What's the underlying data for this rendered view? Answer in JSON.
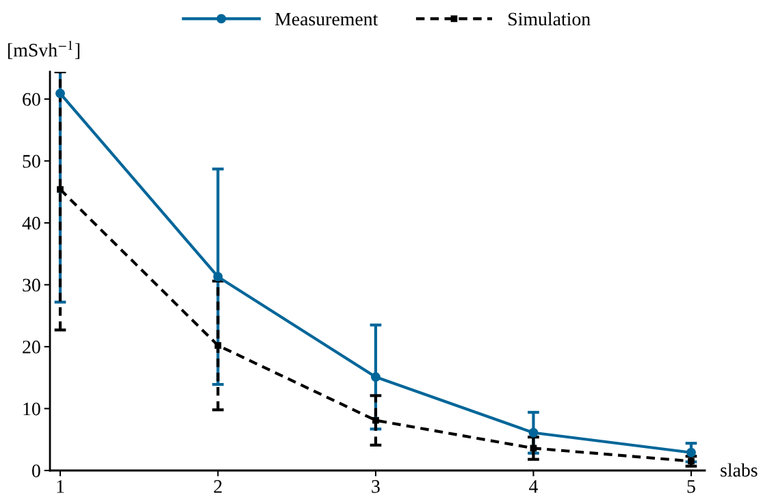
{
  "chart_data": {
    "type": "line",
    "xlabel": "slabs",
    "ylabel": "[mSvh$^{−1}$]",
    "x": [
      1,
      2,
      3,
      4,
      5
    ],
    "xlim": [
      0.935,
      5.087
    ],
    "xticks": [
      1,
      2,
      3,
      4,
      5
    ],
    "ylim": [
      0,
      64.4
    ],
    "yticks": [
      0,
      10,
      20,
      30,
      40,
      50,
      60
    ],
    "grid": false,
    "legend": "top",
    "series": [
      {
        "name": "Measurement",
        "color": "#006699",
        "marker": "circle",
        "line_style": "solid",
        "values": [
          60.9,
          31.3,
          15.1,
          6.1,
          2.9
        ],
        "errors": [
          [
            27.2,
            64.4
          ],
          17.4,
          8.4,
          3.3,
          1.5
        ]
      },
      {
        "name": "Simulation",
        "color": "#000000",
        "marker": "square",
        "line_style": "dashed",
        "values": [
          45.4,
          20.2,
          8.1,
          3.6,
          1.5
        ],
        "errors": [
          [
            22.7,
            64.4
          ],
          10.4,
          4.0,
          1.8,
          0.8
        ]
      }
    ]
  }
}
